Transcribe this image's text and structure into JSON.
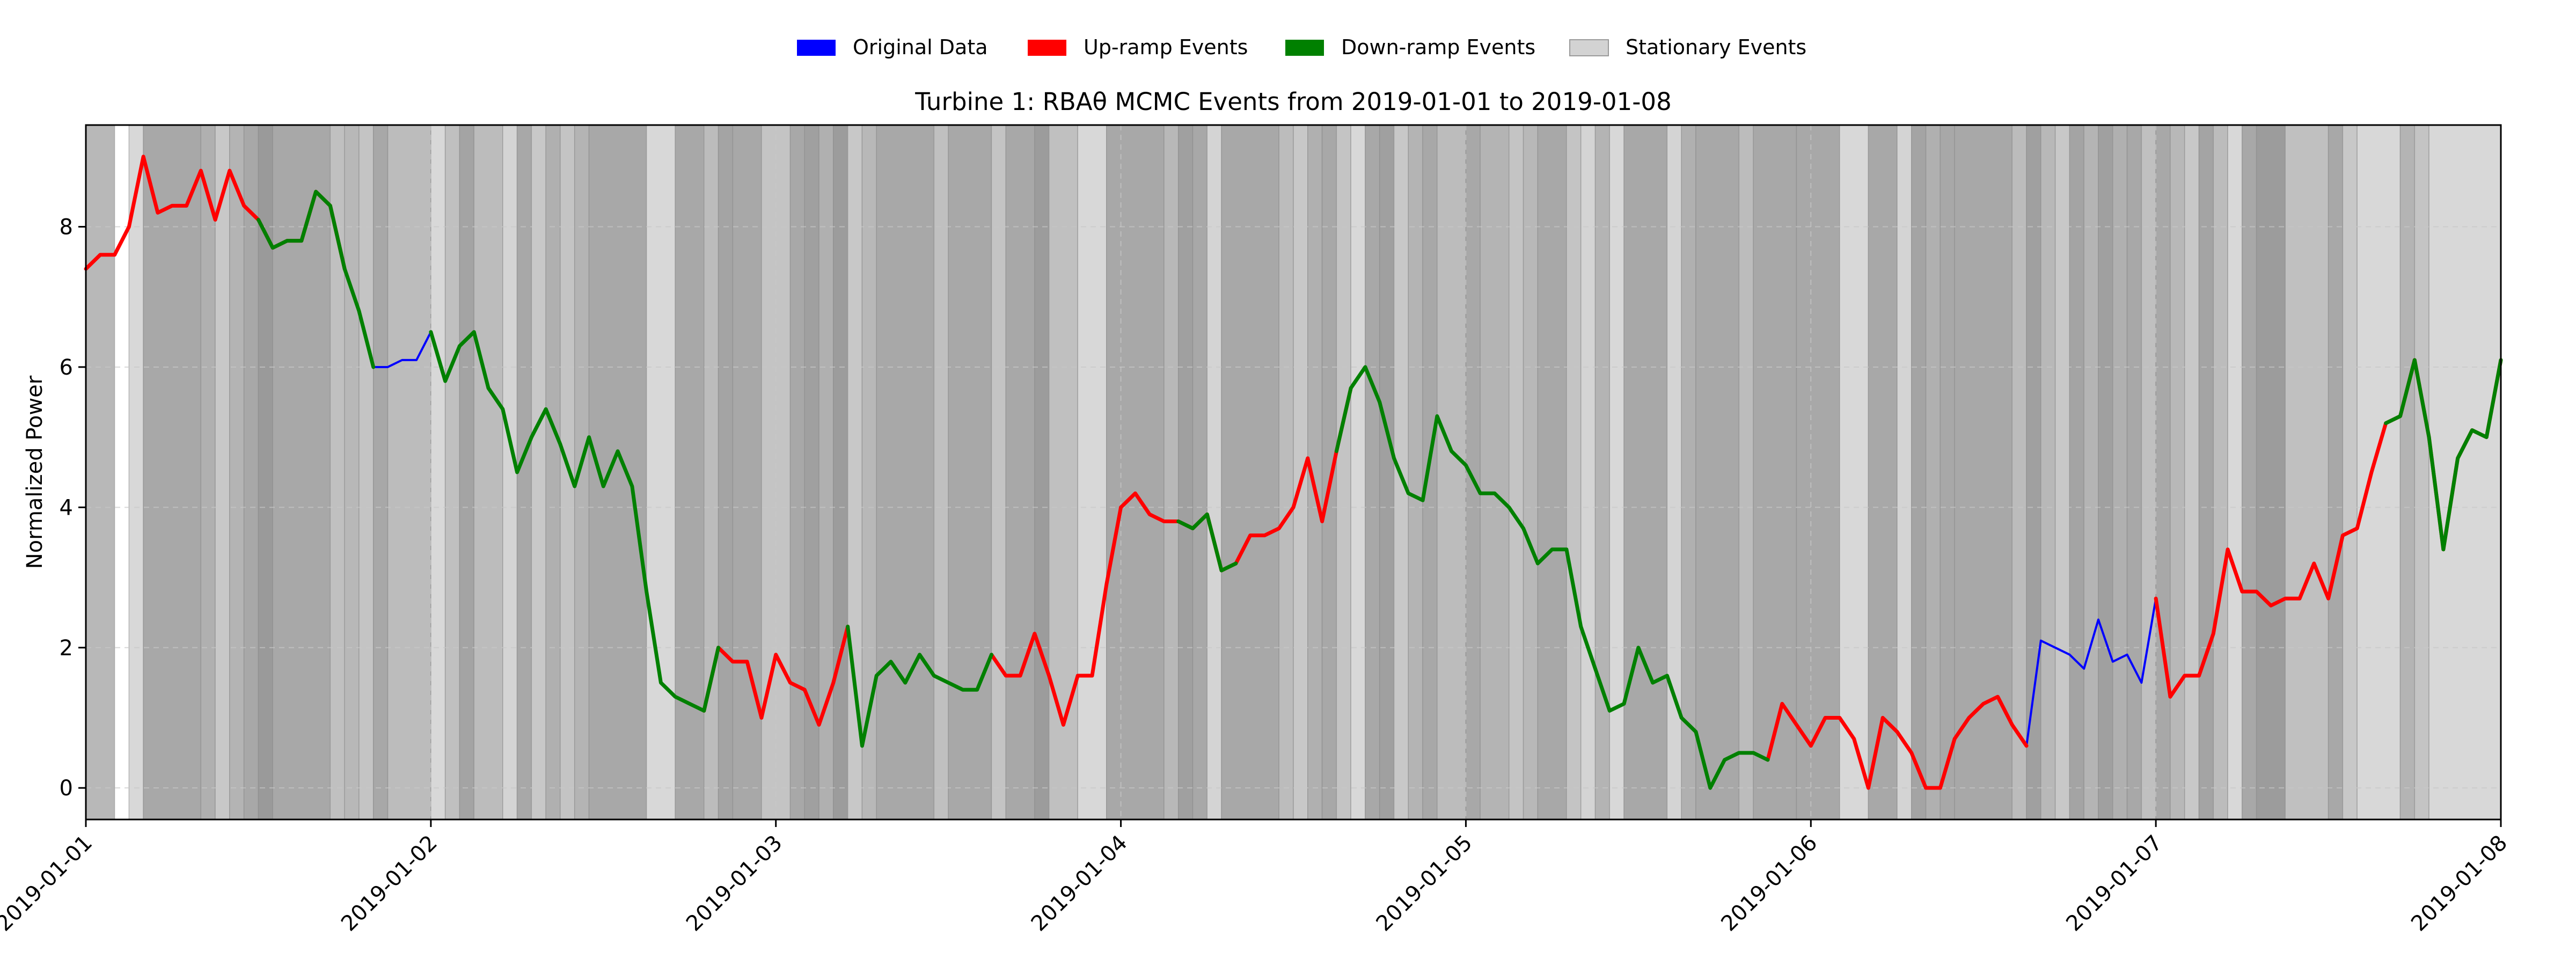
{
  "chart_data": {
    "type": "line",
    "title": "Turbine 1: RBAθ MCMC Events from 2019-01-01 to 2019-01-08",
    "xlabel": "",
    "ylabel": "Normalized Power",
    "x_range": [
      "2019-01-01",
      "2019-01-08"
    ],
    "ylim": [
      -0.45,
      9.45
    ],
    "x_ticks": [
      "2019-01-01",
      "2019-01-02",
      "2019-01-03",
      "2019-01-04",
      "2019-01-05",
      "2019-01-06",
      "2019-01-07",
      "2019-01-08"
    ],
    "y_ticks": [
      0,
      2,
      4,
      6,
      8
    ],
    "grid": true,
    "legend_position": "top-center",
    "legend": [
      {
        "label": "Original Data",
        "color": "#0000ff"
      },
      {
        "label": "Up-ramp Events",
        "color": "#ff0000"
      },
      {
        "label": "Down-ramp Events",
        "color": "#008000"
      },
      {
        "label": "Stationary Events",
        "color": "#d3d3d3"
      }
    ],
    "series": [
      {
        "name": "Original Data",
        "color": "#0000ff",
        "interval_hours": 1,
        "start": "2019-01-01 00:00",
        "values": [
          7.4,
          7.6,
          7.6,
          8.0,
          9.0,
          8.2,
          8.3,
          8.3,
          8.8,
          8.1,
          8.8,
          8.3,
          8.1,
          7.7,
          7.8,
          7.8,
          8.5,
          8.3,
          7.4,
          6.8,
          6.0,
          6.0,
          6.1,
          6.1,
          6.5,
          5.8,
          6.3,
          6.5,
          5.7,
          5.4,
          4.5,
          5.0,
          5.4,
          4.9,
          4.3,
          5.0,
          4.3,
          4.8,
          4.3,
          2.8,
          1.5,
          1.3,
          1.2,
          1.1,
          2.0,
          1.8,
          1.8,
          1.0,
          1.9,
          1.5,
          1.4,
          0.9,
          1.5,
          2.3,
          0.6,
          1.6,
          1.8,
          1.5,
          1.9,
          1.6,
          1.5,
          1.4,
          1.4,
          1.9,
          1.6,
          1.6,
          2.2,
          1.6,
          0.9,
          1.6,
          1.6,
          2.9,
          4.0,
          4.2,
          3.9,
          3.8,
          3.8,
          3.7,
          3.9,
          3.1,
          3.2,
          3.6,
          3.6,
          3.7,
          4.0,
          4.7,
          3.8,
          4.8,
          5.7,
          6.0,
          5.5,
          4.7,
          4.2,
          4.1,
          5.3,
          4.8,
          4.6,
          4.2,
          4.2,
          4.0,
          3.7,
          3.2,
          3.4,
          3.4,
          2.3,
          1.7,
          1.1,
          1.2,
          2.0,
          1.5,
          1.6,
          1.0,
          0.8,
          0.0,
          0.4,
          0.5,
          0.5,
          0.4,
          1.2,
          0.9,
          0.6,
          1.0,
          1.0,
          0.7,
          0.0,
          1.0,
          0.8,
          0.5,
          0.0,
          0.0,
          0.7,
          1.0,
          1.2,
          1.3,
          0.9,
          0.6,
          2.1,
          2.0,
          1.9,
          1.7,
          2.4,
          1.8,
          1.9,
          1.5,
          2.7,
          1.3,
          1.6,
          1.6,
          2.2,
          3.4,
          2.8,
          2.8,
          2.6,
          2.7,
          2.7,
          3.2,
          2.7,
          3.6,
          3.7,
          4.5,
          5.2,
          5.3,
          6.1,
          5.0,
          3.4,
          4.7,
          5.1,
          5.0,
          6.1
        ]
      },
      {
        "name": "Up-ramp Events",
        "color": "#ff0000",
        "segments": [
          [
            0,
            18
          ],
          [
            43,
            53
          ],
          [
            63,
            72
          ],
          [
            72,
            88
          ],
          [
            117,
            135
          ],
          [
            144,
            160
          ],
          [
            160,
            162
          ],
          [
            162,
            172
          ]
        ]
      },
      {
        "name": "Down-ramp Events",
        "color": "#008000",
        "segments": [
          [
            12,
            20
          ],
          [
            24,
            44
          ],
          [
            53,
            63
          ],
          [
            76,
            80
          ],
          [
            87,
            117
          ],
          [
            160,
            168
          ],
          [
            171,
            182
          ]
        ]
      }
    ],
    "stationary_bands": [
      {
        "from": 0,
        "to": 2,
        "shade": "#b8b8b8"
      },
      {
        "from": 3,
        "to": 4,
        "shade": "#d8d8d8"
      },
      {
        "from": 4,
        "to": 8,
        "shade": "#a8a8a8"
      },
      {
        "from": 8,
        "to": 9,
        "shade": "#b0b0b0"
      },
      {
        "from": 9,
        "to": 10,
        "shade": "#c8c8c8"
      },
      {
        "from": 10,
        "to": 11,
        "shade": "#b4b4b4"
      },
      {
        "from": 11,
        "to": 12,
        "shade": "#a8a8a8"
      },
      {
        "from": 12,
        "to": 13,
        "shade": "#9a9a9a"
      },
      {
        "from": 13,
        "to": 17,
        "shade": "#a8a8a8"
      },
      {
        "from": 17,
        "to": 18,
        "shade": "#c0c0c0"
      },
      {
        "from": 18,
        "to": 19,
        "shade": "#b8b8b8"
      },
      {
        "from": 19,
        "to": 20,
        "shade": "#c4c4c4"
      },
      {
        "from": 20,
        "to": 21,
        "shade": "#a8a8a8"
      },
      {
        "from": 21,
        "to": 24,
        "shade": "#bcbcbc"
      },
      {
        "from": 24,
        "to": 25,
        "shade": "#d8d8d8"
      },
      {
        "from": 25,
        "to": 26,
        "shade": "#c0c0c0"
      },
      {
        "from": 26,
        "to": 27,
        "shade": "#a4a4a4"
      },
      {
        "from": 27,
        "to": 29,
        "shade": "#bcbcbc"
      },
      {
        "from": 29,
        "to": 30,
        "shade": "#d4d4d4"
      },
      {
        "from": 30,
        "to": 31,
        "shade": "#a8a8a8"
      },
      {
        "from": 31,
        "to": 32,
        "shade": "#c8c8c8"
      },
      {
        "from": 32,
        "to": 33,
        "shade": "#b0b0b0"
      },
      {
        "from": 33,
        "to": 34,
        "shade": "#c4c4c4"
      },
      {
        "from": 34,
        "to": 35,
        "shade": "#b4b4b4"
      },
      {
        "from": 35,
        "to": 39,
        "shade": "#a8a8a8"
      },
      {
        "from": 39,
        "to": 41,
        "shade": "#d8d8d8"
      },
      {
        "from": 41,
        "to": 43,
        "shade": "#a8a8a8"
      },
      {
        "from": 43,
        "to": 44,
        "shade": "#bcbcbc"
      },
      {
        "from": 44,
        "to": 45,
        "shade": "#a4a4a4"
      },
      {
        "from": 45,
        "to": 47,
        "shade": "#a8a8a8"
      },
      {
        "from": 47,
        "to": 49,
        "shade": "#c4c4c4"
      },
      {
        "from": 49,
        "to": 50,
        "shade": "#a8a8a8"
      },
      {
        "from": 50,
        "to": 51,
        "shade": "#a0a0a0"
      },
      {
        "from": 51,
        "to": 52,
        "shade": "#b0b0b0"
      },
      {
        "from": 52,
        "to": 53,
        "shade": "#9c9c9c"
      },
      {
        "from": 53,
        "to": 54,
        "shade": "#c8c8c8"
      },
      {
        "from": 54,
        "to": 55,
        "shade": "#b8b8b8"
      },
      {
        "from": 55,
        "to": 59,
        "shade": "#a8a8a8"
      },
      {
        "from": 59,
        "to": 60,
        "shade": "#c0c0c0"
      },
      {
        "from": 60,
        "to": 63,
        "shade": "#a8a8a8"
      },
      {
        "from": 63,
        "to": 64,
        "shade": "#c4c4c4"
      },
      {
        "from": 64,
        "to": 66,
        "shade": "#a8a8a8"
      },
      {
        "from": 66,
        "to": 67,
        "shade": "#9c9c9c"
      },
      {
        "from": 67,
        "to": 69,
        "shade": "#c0c0c0"
      },
      {
        "from": 69,
        "to": 71,
        "shade": "#d8d8d8"
      },
      {
        "from": 71,
        "to": 75,
        "shade": "#a8a8a8"
      },
      {
        "from": 75,
        "to": 76,
        "shade": "#b8b8b8"
      },
      {
        "from": 76,
        "to": 77,
        "shade": "#a0a0a0"
      },
      {
        "from": 77,
        "to": 78,
        "shade": "#a8a8a8"
      },
      {
        "from": 78,
        "to": 79,
        "shade": "#d4d4d4"
      },
      {
        "from": 79,
        "to": 83,
        "shade": "#a8a8a8"
      },
      {
        "from": 83,
        "to": 84,
        "shade": "#bcbcbc"
      },
      {
        "from": 84,
        "to": 85,
        "shade": "#c8c8c8"
      },
      {
        "from": 85,
        "to": 86,
        "shade": "#b0b0b0"
      },
      {
        "from": 86,
        "to": 87,
        "shade": "#a8a8a8"
      },
      {
        "from": 87,
        "to": 88,
        "shade": "#c4c4c4"
      },
      {
        "from": 88,
        "to": 89,
        "shade": "#d8d8d8"
      },
      {
        "from": 89,
        "to": 90,
        "shade": "#a8a8a8"
      },
      {
        "from": 90,
        "to": 91,
        "shade": "#a0a0a0"
      },
      {
        "from": 91,
        "to": 92,
        "shade": "#c8c8c8"
      },
      {
        "from": 92,
        "to": 93,
        "shade": "#b4b4b4"
      },
      {
        "from": 93,
        "to": 94,
        "shade": "#a8a8a8"
      },
      {
        "from": 94,
        "to": 96,
        "shade": "#bcbcbc"
      },
      {
        "from": 96,
        "to": 97,
        "shade": "#a8a8a8"
      },
      {
        "from": 97,
        "to": 99,
        "shade": "#b4b4b4"
      },
      {
        "from": 99,
        "to": 100,
        "shade": "#c4c4c4"
      },
      {
        "from": 100,
        "to": 101,
        "shade": "#b8b8b8"
      },
      {
        "from": 101,
        "to": 103,
        "shade": "#a8a8a8"
      },
      {
        "from": 103,
        "to": 104,
        "shade": "#c4c4c4"
      },
      {
        "from": 104,
        "to": 105,
        "shade": "#d4d4d4"
      },
      {
        "from": 105,
        "to": 106,
        "shade": "#b4b4b4"
      },
      {
        "from": 106,
        "to": 107,
        "shade": "#d8d8d8"
      },
      {
        "from": 107,
        "to": 110,
        "shade": "#a8a8a8"
      },
      {
        "from": 110,
        "to": 111,
        "shade": "#d4d4d4"
      },
      {
        "from": 111,
        "to": 112,
        "shade": "#b0b0b0"
      },
      {
        "from": 112,
        "to": 115,
        "shade": "#a8a8a8"
      },
      {
        "from": 115,
        "to": 116,
        "shade": "#bcbcbc"
      },
      {
        "from": 116,
        "to": 119,
        "shade": "#a8a8a8"
      },
      {
        "from": 119,
        "to": 122,
        "shade": "#a8a8a8"
      },
      {
        "from": 122,
        "to": 124,
        "shade": "#d8d8d8"
      },
      {
        "from": 124,
        "to": 126,
        "shade": "#a8a8a8"
      },
      {
        "from": 126,
        "to": 127,
        "shade": "#d4d4d4"
      },
      {
        "from": 127,
        "to": 128,
        "shade": "#a4a4a4"
      },
      {
        "from": 128,
        "to": 129,
        "shade": "#b0b0b0"
      },
      {
        "from": 129,
        "to": 130,
        "shade": "#a8a8a8"
      },
      {
        "from": 130,
        "to": 134,
        "shade": "#a8a8a8"
      },
      {
        "from": 134,
        "to": 135,
        "shade": "#bcbcbc"
      },
      {
        "from": 135,
        "to": 136,
        "shade": "#a0a0a0"
      },
      {
        "from": 136,
        "to": 137,
        "shade": "#b8b8b8"
      },
      {
        "from": 137,
        "to": 138,
        "shade": "#c8c8c8"
      },
      {
        "from": 138,
        "to": 139,
        "shade": "#a4a4a4"
      },
      {
        "from": 139,
        "to": 140,
        "shade": "#b4b4b4"
      },
      {
        "from": 140,
        "to": 141,
        "shade": "#a0a0a0"
      },
      {
        "from": 141,
        "to": 142,
        "shade": "#b0b0b0"
      },
      {
        "from": 142,
        "to": 143,
        "shade": "#a8a8a8"
      },
      {
        "from": 143,
        "to": 144,
        "shade": "#c0c0c0"
      },
      {
        "from": 144,
        "to": 145,
        "shade": "#a8a8a8"
      },
      {
        "from": 145,
        "to": 146,
        "shade": "#b8b8b8"
      },
      {
        "from": 146,
        "to": 147,
        "shade": "#c8c8c8"
      },
      {
        "from": 147,
        "to": 148,
        "shade": "#a4a4a4"
      },
      {
        "from": 148,
        "to": 149,
        "shade": "#bcbcbc"
      },
      {
        "from": 149,
        "to": 150,
        "shade": "#d8d8d8"
      },
      {
        "from": 150,
        "to": 151,
        "shade": "#a8a8a8"
      },
      {
        "from": 151,
        "to": 153,
        "shade": "#9c9c9c"
      },
      {
        "from": 153,
        "to": 156,
        "shade": "#c0c0c0"
      },
      {
        "from": 156,
        "to": 157,
        "shade": "#a8a8a8"
      },
      {
        "from": 157,
        "to": 158,
        "shade": "#c8c8c8"
      },
      {
        "from": 158,
        "to": 161,
        "shade": "#d8d8d8"
      },
      {
        "from": 161,
        "to": 162,
        "shade": "#b4b4b4"
      },
      {
        "from": 162,
        "to": 163,
        "shade": "#c4c4c4"
      },
      {
        "from": 163,
        "to": 168,
        "shade": "#d8d8d8"
      }
    ]
  }
}
